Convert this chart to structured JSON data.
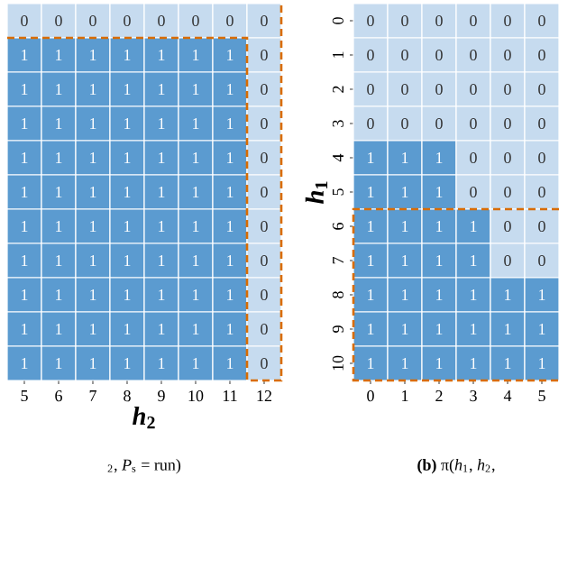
{
  "chart_data": [
    {
      "type": "heatmap",
      "xlabel": "*h*$_{2}$",
      "annotations": [
        "$_{2}$, *P*$_{s}$ = run)"
      ],
      "tick_labels": "x",
      "data_labels": true,
      "categories": [
        "5",
        "6",
        "7",
        "8",
        "9",
        "10",
        "11",
        "12"
      ],
      "y_categories": [
        null,
        null,
        null,
        null,
        null,
        null,
        null,
        null,
        null,
        null,
        null
      ],
      "cells": [
        [
          0,
          0,
          0,
          0,
          0,
          0,
          0,
          0
        ],
        [
          1,
          1,
          1,
          1,
          1,
          1,
          1,
          0
        ],
        [
          1,
          1,
          1,
          1,
          1,
          1,
          1,
          0
        ],
        [
          1,
          1,
          1,
          1,
          1,
          1,
          1,
          0
        ],
        [
          1,
          1,
          1,
          1,
          1,
          1,
          1,
          0
        ],
        [
          1,
          1,
          1,
          1,
          1,
          1,
          1,
          0
        ],
        [
          1,
          1,
          1,
          1,
          1,
          1,
          1,
          0
        ],
        [
          1,
          1,
          1,
          1,
          1,
          1,
          1,
          0
        ],
        [
          1,
          1,
          1,
          1,
          1,
          1,
          1,
          0
        ],
        [
          1,
          1,
          1,
          1,
          1,
          1,
          1,
          0
        ],
        [
          1,
          1,
          1,
          1,
          1,
          1,
          1,
          0
        ]
      ]
    },
    {
      "type": "heatmap",
      "ylabel": "*h*$_{1}$",
      "annotations": [
        "**(b)** π(*h*$_{1}$, *h*$_{2}$,"
      ],
      "data_labels": true,
      "categories": [
        "0",
        "1",
        "2",
        "3",
        "4",
        "5"
      ],
      "y_categories": [
        "0",
        "1",
        "2",
        "3",
        "4",
        "5",
        "6",
        "7",
        "8",
        "9",
        "10"
      ],
      "cells": [
        [
          0,
          0,
          0,
          0,
          0,
          0
        ],
        [
          0,
          0,
          0,
          0,
          0,
          0
        ],
        [
          0,
          0,
          0,
          0,
          0,
          0
        ],
        [
          0,
          0,
          0,
          0,
          0,
          0
        ],
        [
          1,
          1,
          1,
          0,
          0,
          0
        ],
        [
          1,
          1,
          1,
          0,
          0,
          0
        ],
        [
          1,
          1,
          1,
          1,
          0,
          0
        ],
        [
          1,
          1,
          1,
          1,
          0,
          0
        ],
        [
          1,
          1,
          1,
          1,
          1,
          1
        ],
        [
          1,
          1,
          1,
          1,
          1,
          1
        ],
        [
          1,
          1,
          1,
          1,
          1,
          1
        ]
      ]
    }
  ]
}
